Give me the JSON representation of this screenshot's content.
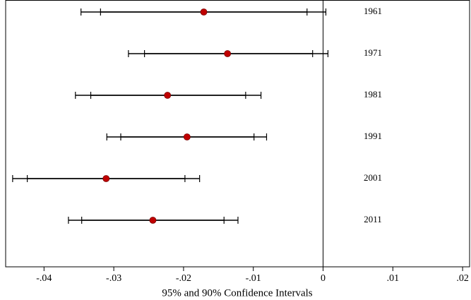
{
  "chart_data": {
    "type": "coefplot",
    "xlabel": "95% and 90% Confidence Intervals",
    "categories": [
      "1961",
      "1971",
      "1981",
      "1991",
      "2001",
      "2011"
    ],
    "values": [
      -0.0171,
      -0.0137,
      -0.0223,
      -0.0195,
      -0.0311,
      -0.0244
    ],
    "ci95_low": [
      -0.0347,
      -0.0279,
      -0.0355,
      -0.031,
      -0.0445,
      -0.0365
    ],
    "ci95_high": [
      0.0004,
      0.0007,
      -0.0089,
      -0.0081,
      -0.0177,
      -0.0122
    ],
    "ci90_low": [
      -0.0319,
      -0.0256,
      -0.0333,
      -0.029,
      -0.0424,
      -0.0346
    ],
    "ci90_high": [
      -0.0023,
      -0.0015,
      -0.0111,
      -0.0099,
      -0.0198,
      -0.0142
    ],
    "color": "#c00000",
    "refline": 0,
    "xlim": [
      -0.0455,
      0.021
    ],
    "xticks": [
      {
        "value": -0.04,
        "label": "-.04"
      },
      {
        "value": -0.03,
        "label": "-.03"
      },
      {
        "value": -0.02,
        "label": "-.02"
      },
      {
        "value": -0.01,
        "label": "-.01"
      },
      0,
      {
        "value": 0.01,
        "label": ".01"
      },
      {
        "value": 0.02,
        "label": ".02"
      }
    ]
  }
}
